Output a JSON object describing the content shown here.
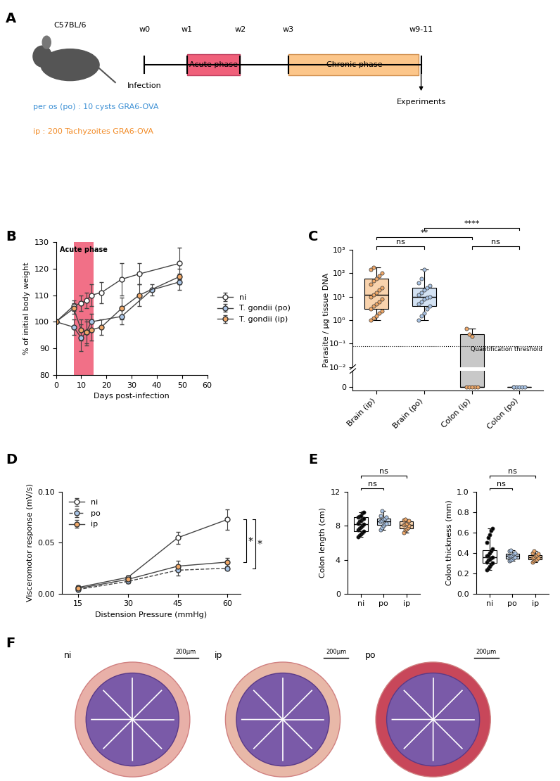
{
  "panel_labels": [
    "A",
    "B",
    "C",
    "D",
    "E",
    "F"
  ],
  "schematic": {
    "strain": "C57BL/6",
    "infection": "Infection",
    "routes": [
      {
        "text": "per os (po) : 10 cysts GRA6-OVA",
        "color": "#3b8fd4"
      },
      {
        "text": "ip : 200 Tachyzoites GRA6-OVA",
        "color": "#f28c28"
      }
    ],
    "timepoints": [
      "w0",
      "w1",
      "w2",
      "w3",
      "w9-11"
    ],
    "phases": [
      {
        "label": "Acute phase",
        "color": "#f0607a"
      },
      {
        "label": "Chronic phase",
        "color": "#fcc68a"
      }
    ],
    "end": "Experiments"
  },
  "chart_data": [
    {
      "type": "line",
      "xlabel": "Days post-infection",
      "ylabel": "% of initial body weight",
      "xlim": [
        0,
        60
      ],
      "xticks": [
        0,
        10,
        20,
        30,
        40,
        50,
        60
      ],
      "ylim": [
        80,
        130
      ],
      "yticks": [
        80,
        90,
        100,
        110,
        120,
        130
      ],
      "band": {
        "label": "Acute phase",
        "x": [
          7,
          15
        ],
        "color": "#f0607a"
      },
      "legend": "center left",
      "series": [
        {
          "name": "ni",
          "color": "#ffffff",
          "marker": "circle",
          "line_style": "solid",
          "x": [
            0,
            7,
            10,
            12,
            14,
            18,
            26,
            33,
            49
          ],
          "values": [
            100,
            106,
            107,
            108,
            110,
            111,
            116,
            118,
            122
          ],
          "error": [
            0,
            2,
            3,
            3,
            4,
            4,
            6,
            4,
            6
          ]
        },
        {
          "name": "T. gondii (po)",
          "color": "#a9c4e6",
          "marker": "circle",
          "line_style": "solid",
          "x": [
            0,
            7,
            10,
            12,
            14,
            26,
            38,
            49
          ],
          "values": [
            100,
            98,
            94,
            96,
            100,
            102,
            112,
            115
          ],
          "error": [
            0,
            3,
            5,
            4,
            3,
            3,
            2,
            3
          ]
        },
        {
          "name": "T. gondii (ip)",
          "color": "#f0a868",
          "marker": "circle",
          "line_style": "solid",
          "x": [
            0,
            7,
            10,
            12,
            14,
            18,
            26,
            33,
            49
          ],
          "values": [
            100,
            105,
            97,
            96,
            97,
            98,
            105,
            110,
            117
          ],
          "error": [
            0,
            2,
            4,
            5,
            4,
            3,
            4,
            4,
            3
          ]
        }
      ]
    },
    {
      "type": "box",
      "ylabel": "Parasite / µg tissue DNA",
      "categories": [
        "Brain (ip)",
        "Brain (po)",
        "Colon (ip)",
        "Colon (po)"
      ],
      "colors": [
        "#f0a868",
        "#a9c4e6",
        "#f0a868",
        "#a9c4e6"
      ],
      "box_colors": [
        "#f9d3ad",
        "#d3e2f3",
        "#c8c8c8",
        "#d3e2f3"
      ],
      "log": "y",
      "ylim": [
        0.01,
        1000
      ],
      "yticks": [
        {
          "value": 0.01,
          "label": "10⁻²"
        },
        {
          "value": 0.1,
          "label": "10⁻¹"
        },
        {
          "value": 1,
          "label": "10⁰"
        },
        {
          "value": 10,
          "label": "10¹"
        },
        {
          "value": 100,
          "label": "10²"
        },
        {
          "value": 1000,
          "label": "10³"
        }
      ],
      "ylim_lower": [
        -0.002,
        0.01
      ],
      "yticks_lower": [
        0
      ],
      "threshold": {
        "value": 0.08,
        "label": "Quantification threshold"
      },
      "points": [
        [
          1.0,
          1.2,
          1.5,
          2,
          2.5,
          3,
          4,
          5,
          6,
          8,
          10,
          12,
          15,
          20,
          25,
          35,
          50,
          60,
          80,
          100,
          150,
          180
        ],
        [
          1.0,
          1.5,
          2,
          3,
          4,
          5,
          6,
          8,
          9,
          10,
          12,
          15,
          20,
          25,
          30,
          40,
          60,
          150
        ],
        [
          0.45,
          0.25,
          0.2,
          0,
          0,
          0,
          0,
          0
        ],
        [
          0,
          0,
          0,
          0,
          0,
          0
        ]
      ],
      "boxes": [
        {
          "whislo": 1.0,
          "q1": 3,
          "med": 12,
          "q3": 60,
          "whishi": 180
        },
        {
          "whislo": 1.0,
          "q1": 4,
          "med": 10,
          "q3": 25,
          "whishi": 150
        },
        {
          "whislo": 0,
          "q1": 0,
          "med": 0,
          "q3": 0.25,
          "whishi": 0.45
        },
        {
          "whislo": 0,
          "q1": 0,
          "med": 0,
          "q3": 0,
          "whishi": 0
        }
      ],
      "comparisons": [
        {
          "groups": [
            "Brain (ip)",
            "Brain (po)"
          ],
          "label": "ns"
        },
        {
          "groups": [
            "Colon (ip)",
            "Colon (po)"
          ],
          "label": "ns"
        },
        {
          "groups": [
            "Brain (ip)",
            "Colon (ip)"
          ],
          "label": "**"
        },
        {
          "groups": [
            "Brain (po)",
            "Colon (po)"
          ],
          "label": "****"
        }
      ]
    },
    {
      "type": "line",
      "xlabel": "Distension Pressure (mmHg)",
      "ylabel": "Visceromotor response (mV/s)",
      "x": [
        15,
        30,
        45,
        60
      ],
      "xlim": [
        10,
        64
      ],
      "xticks": [
        15,
        30,
        45,
        60
      ],
      "ylim": [
        0,
        0.1
      ],
      "yticks": [
        {
          "value": 0,
          "label": "0.00"
        },
        {
          "value": 0.05,
          "label": "0.05"
        },
        {
          "value": 0.1,
          "label": "0.10"
        }
      ],
      "legend": "upper left",
      "series": [
        {
          "name": "ni",
          "color": "#ffffff",
          "marker": "circle",
          "line_style": "solid",
          "values": [
            0.006,
            0.016,
            0.055,
            0.073
          ],
          "error": [
            0.002,
            0.002,
            0.006,
            0.01
          ]
        },
        {
          "name": "po",
          "color": "#a9c4e6",
          "marker": "circle",
          "line_style": "dashed",
          "values": [
            0.004,
            0.012,
            0.023,
            0.025
          ],
          "error": [
            0.001,
            0.002,
            0.005,
            0.002
          ]
        },
        {
          "name": "ip",
          "color": "#f0a868",
          "marker": "circle",
          "line_style": "solid",
          "values": [
            0.005,
            0.014,
            0.027,
            0.031
          ],
          "error": [
            0.001,
            0.002,
            0.005,
            0.004
          ]
        }
      ],
      "comparisons": [
        {
          "groups": [
            "ni",
            "ip"
          ],
          "label": "*"
        },
        {
          "groups": [
            "ni",
            "po"
          ],
          "label": "*"
        }
      ]
    },
    {
      "type": "box",
      "ylabel": "Colon length (cm)",
      "categories": [
        "ni",
        "po",
        "ip"
      ],
      "colors": [
        "#000000",
        "#a9c4e6",
        "#f0a868"
      ],
      "box_colors": [
        "#ffffff",
        "#d3e2f3",
        "#f9d3ad"
      ],
      "ylim": [
        0,
        12
      ],
      "yticks": [
        0,
        4,
        8,
        12
      ],
      "points": [
        [
          6.7,
          6.9,
          7.0,
          7.2,
          7.4,
          7.5,
          7.7,
          7.9,
          8.0,
          8.2,
          8.3,
          8.5,
          8.6,
          8.8,
          8.9,
          9.0,
          9.1,
          9.2,
          9.5,
          9.6
        ],
        [
          7.5,
          7.8,
          8.0,
          8.2,
          8.3,
          8.5,
          8.6,
          8.8,
          8.9,
          9.0,
          9.2,
          9.8
        ],
        [
          7.2,
          7.5,
          7.6,
          7.8,
          8.0,
          8.1,
          8.2,
          8.3,
          8.5,
          8.6,
          8.7,
          8.8
        ]
      ],
      "boxes": [
        {
          "whislo": 6.7,
          "q1": 7.4,
          "med": 8.2,
          "q3": 9.0,
          "whishi": 9.6
        },
        {
          "whislo": 7.5,
          "q1": 8.1,
          "med": 8.55,
          "q3": 8.9,
          "whishi": 9.8
        },
        {
          "whislo": 7.2,
          "q1": 7.7,
          "med": 8.15,
          "q3": 8.55,
          "whishi": 8.8
        }
      ],
      "comparisons": [
        {
          "groups": [
            "ni",
            "po"
          ],
          "label": "ns"
        },
        {
          "groups": [
            "ni",
            "ip"
          ],
          "label": "ns"
        }
      ]
    },
    {
      "type": "box",
      "ylabel": "Colon thickness (mm)",
      "categories": [
        "ni",
        "po",
        "ip"
      ],
      "colors": [
        "#000000",
        "#a9c4e6",
        "#f0a868"
      ],
      "box_colors": [
        "#ffffff",
        "#d3e2f3",
        "#f9d3ad"
      ],
      "ylim": [
        0,
        1.0
      ],
      "yticks": [
        {
          "value": 0,
          "label": "0.0"
        },
        {
          "value": 0.2,
          "label": "0.2"
        },
        {
          "value": 0.4,
          "label": "0.4"
        },
        {
          "value": 0.6,
          "label": "0.6"
        },
        {
          "value": 0.8,
          "label": "0.8"
        },
        {
          "value": 1.0,
          "label": "1.0"
        }
      ],
      "points": [
        [
          0.23,
          0.25,
          0.27,
          0.29,
          0.3,
          0.31,
          0.33,
          0.34,
          0.35,
          0.36,
          0.37,
          0.38,
          0.4,
          0.42,
          0.44,
          0.5,
          0.55,
          0.58,
          0.62,
          0.64
        ],
        [
          0.32,
          0.33,
          0.34,
          0.35,
          0.36,
          0.37,
          0.37,
          0.38,
          0.39,
          0.4,
          0.42,
          0.43
        ],
        [
          0.31,
          0.32,
          0.33,
          0.34,
          0.35,
          0.35,
          0.36,
          0.37,
          0.38,
          0.39,
          0.4,
          0.42
        ]
      ],
      "boxes": [
        {
          "whislo": 0.23,
          "q1": 0.3,
          "med": 0.36,
          "q3": 0.43,
          "whishi": 0.64
        },
        {
          "whislo": 0.32,
          "q1": 0.345,
          "med": 0.37,
          "q3": 0.395,
          "whishi": 0.43
        },
        {
          "whislo": 0.31,
          "q1": 0.335,
          "med": 0.355,
          "q3": 0.38,
          "whishi": 0.42
        }
      ],
      "comparisons": [
        {
          "groups": [
            "ni",
            "po"
          ],
          "label": "ns"
        },
        {
          "groups": [
            "ni",
            "ip"
          ],
          "label": "ns"
        }
      ]
    }
  ],
  "histology": {
    "panels": [
      {
        "label": "ni"
      },
      {
        "label": "ip"
      },
      {
        "label": "po"
      }
    ],
    "scale_bar": "200µm"
  }
}
